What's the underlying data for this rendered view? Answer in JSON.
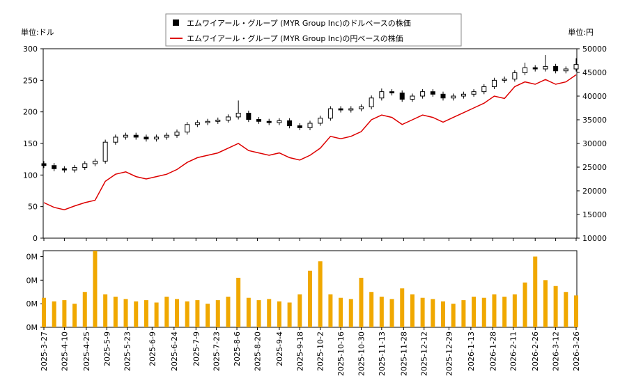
{
  "chart_data": [
    {
      "type": "candlestick",
      "ylabel": "単位:ドル",
      "y2label": "単位:円",
      "ylim": [
        0,
        300
      ],
      "yticks": [
        0,
        50,
        100,
        150,
        200,
        250,
        300
      ],
      "y2lim": [
        10000,
        50000
      ],
      "y2ticks": [
        10000,
        15000,
        20000,
        25000,
        30000,
        35000,
        40000,
        45000,
        50000
      ],
      "x": [
        "2025-3-27",
        "2025-4-3",
        "2025-4-10",
        "2025-4-17",
        "2025-4-24",
        "2025-5-1",
        "2025-5-8",
        "2025-5-15",
        "2025-5-22",
        "2025-5-29",
        "2025-6-5",
        "2025-6-12",
        "2025-6-19",
        "2025-6-26",
        "2025-7-3",
        "2025-7-10",
        "2025-7-17",
        "2025-7-24",
        "2025-7-31",
        "2025-8-7",
        "2025-8-14",
        "2025-8-21",
        "2025-8-28",
        "2025-9-4",
        "2025-9-11",
        "2025-9-18",
        "2025-9-25",
        "2025-10-2",
        "2025-10-9",
        "2025-10-16",
        "2025-10-23",
        "2025-10-30",
        "2025-11-6",
        "2025-11-13",
        "2025-11-20",
        "2025-11-27",
        "2025-12-4",
        "2025-12-11",
        "2025-12-18",
        "2025-12-25",
        "2026-1-1",
        "2026-1-8",
        "2026-1-15",
        "2026-1-22",
        "2026-1-29",
        "2026-2-5",
        "2026-2-12",
        "2026-2-19",
        "2026-2-26",
        "2026-3-5",
        "2026-3-12",
        "2026-3-19",
        "2026-3-26"
      ],
      "series": [
        {
          "name": "エムワイアール・グループ (MYR Group Inc)のドルベースの株価",
          "color": "#000000",
          "open": [
            118,
            115,
            110,
            108,
            112,
            118,
            122,
            152,
            160,
            163,
            160,
            157,
            160,
            163,
            168,
            180,
            183,
            185,
            187,
            192,
            198,
            188,
            185,
            183,
            186,
            178,
            175,
            182,
            190,
            205,
            203,
            205,
            208,
            222,
            232,
            230,
            220,
            225,
            232,
            228,
            222,
            225,
            228,
            232,
            240,
            250,
            252,
            262,
            270,
            268,
            272,
            265,
            268
          ],
          "high": [
            122,
            119,
            114,
            116,
            122,
            126,
            156,
            164,
            167,
            167,
            164,
            164,
            167,
            172,
            184,
            187,
            189,
            191,
            196,
            218,
            202,
            192,
            189,
            190,
            190,
            182,
            186,
            194,
            209,
            209,
            209,
            212,
            226,
            237,
            236,
            234,
            229,
            236,
            236,
            232,
            229,
            232,
            236,
            244,
            254,
            256,
            266,
            278,
            274,
            290,
            276,
            272,
            285
          ],
          "low": [
            111,
            106,
            104,
            104,
            108,
            114,
            118,
            148,
            156,
            156,
            153,
            153,
            156,
            159,
            164,
            176,
            179,
            181,
            183,
            188,
            184,
            181,
            179,
            179,
            174,
            171,
            171,
            178,
            186,
            199,
            199,
            201,
            204,
            218,
            226,
            216,
            216,
            221,
            224,
            218,
            218,
            221,
            224,
            228,
            236,
            246,
            248,
            258,
            264,
            264,
            261,
            261,
            264
          ],
          "close": [
            115,
            110,
            108,
            112,
            118,
            122,
            152,
            160,
            163,
            160,
            157,
            160,
            163,
            168,
            180,
            183,
            185,
            187,
            192,
            198,
            188,
            185,
            183,
            186,
            178,
            175,
            182,
            190,
            205,
            203,
            205,
            208,
            222,
            232,
            230,
            220,
            225,
            232,
            228,
            222,
            225,
            228,
            232,
            240,
            250,
            252,
            262,
            270,
            268,
            272,
            265,
            268,
            275
          ]
        },
        {
          "name": "エムワイアール・グループ (MYR Group Inc)の円ベースの株価",
          "color": "#dd0000",
          "axis": "y2",
          "values": [
            17500,
            16500,
            16000,
            16800,
            17500,
            18000,
            22000,
            23500,
            24000,
            23000,
            22500,
            23000,
            23500,
            24500,
            26000,
            27000,
            27500,
            28000,
            29000,
            30000,
            28500,
            28000,
            27500,
            28000,
            27000,
            26500,
            27500,
            29000,
            31500,
            31000,
            31500,
            32500,
            35000,
            36000,
            35500,
            34000,
            35000,
            36000,
            35500,
            34500,
            35500,
            36500,
            37500,
            38500,
            40000,
            39500,
            42000,
            43000,
            42500,
            43500,
            42500,
            43000,
            44500
          ]
        }
      ]
    },
    {
      "type": "bar",
      "color": "#f0a800",
      "ylim": [
        0,
        650000
      ],
      "yticks": [
        {
          "value": 0,
          "label": "0M"
        },
        {
          "value": 200000,
          "label": "0M"
        },
        {
          "value": 400000,
          "label": "0M"
        },
        {
          "value": 600000,
          "label": "0M"
        }
      ],
      "values": [
        250000,
        220000,
        230000,
        200000,
        300000,
        650000,
        280000,
        260000,
        240000,
        220000,
        230000,
        210000,
        260000,
        240000,
        220000,
        230000,
        200000,
        230000,
        260000,
        420000,
        250000,
        230000,
        240000,
        220000,
        210000,
        280000,
        480000,
        560000,
        280000,
        250000,
        240000,
        420000,
        300000,
        260000,
        240000,
        330000,
        280000,
        250000,
        240000,
        220000,
        200000,
        230000,
        260000,
        250000,
        280000,
        260000,
        280000,
        380000,
        600000,
        400000,
        350000,
        300000,
        270000
      ],
      "xticks": [
        "2025-3-27",
        "2025-4-10",
        "2025-4-25",
        "2025-5-9",
        "2025-5-23",
        "2025-6-9",
        "2025-6-24",
        "2025-7-9",
        "2025-7-23",
        "2025-8-6",
        "2025-8-20",
        "2025-9-4",
        "2025-9-18",
        "2025-10-2",
        "2025-10-16",
        "2025-10-30",
        "2025-11-13",
        "2025-11-28",
        "2025-12-12",
        "2025-12-29",
        "2026-1-13",
        "2026-1-28",
        "2026-2-11",
        "2026-2-26",
        "2026-3-12",
        "2026-3-26"
      ]
    }
  ]
}
